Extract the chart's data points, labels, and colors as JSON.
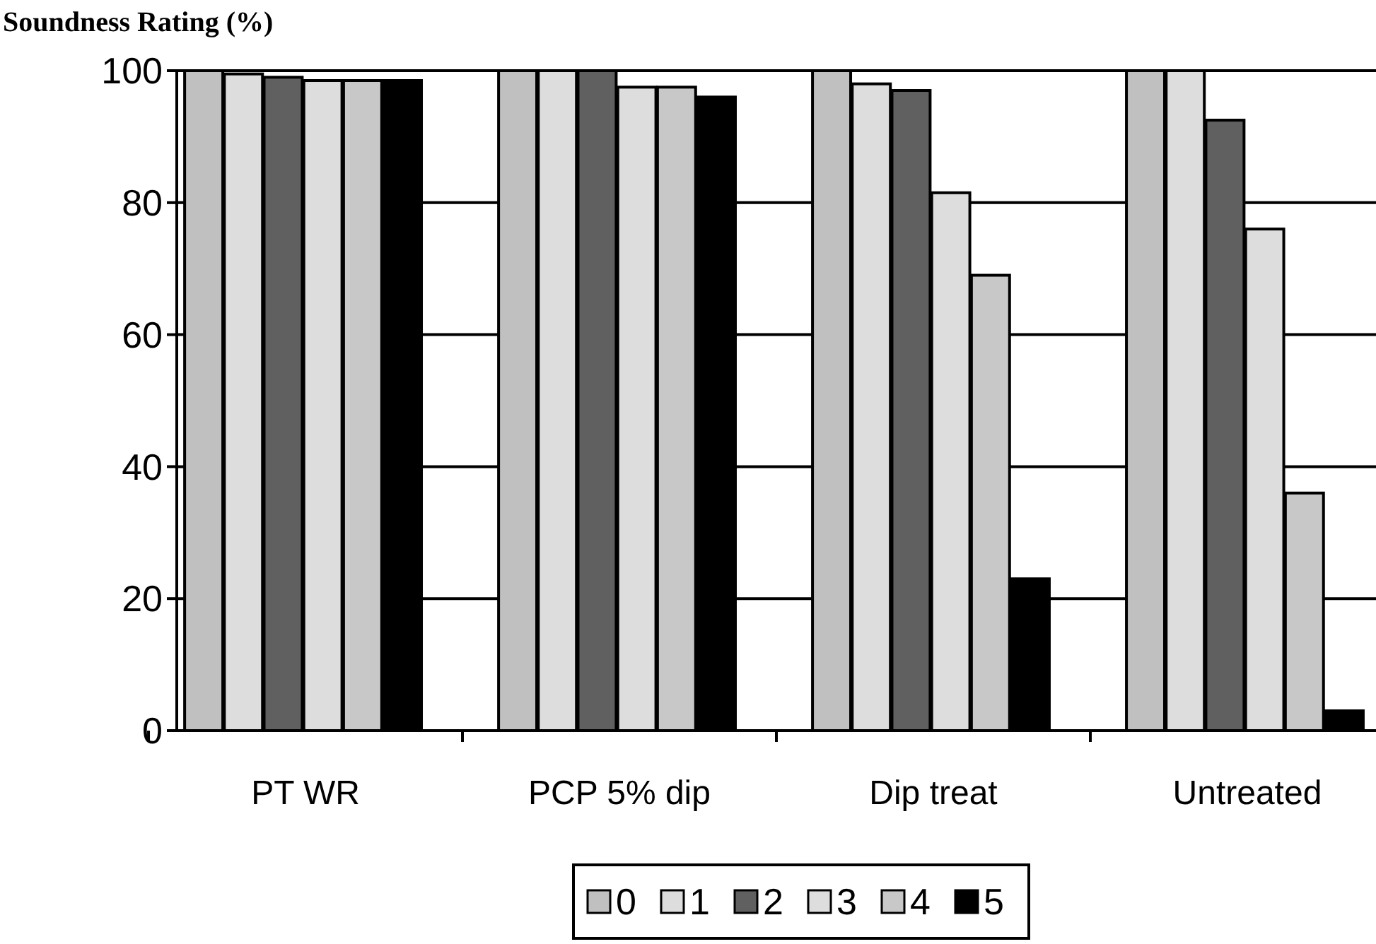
{
  "chart_data": {
    "type": "bar",
    "ylabel": "Soundness Rating (%)",
    "categories": [
      "PT WR",
      "PCP 5% dip",
      "Dip treat",
      "Untreated"
    ],
    "series": [
      {
        "name": "0",
        "color": "#c0c0c0",
        "values": [
          100,
          100,
          100,
          100
        ]
      },
      {
        "name": "1",
        "color": "#dddddd",
        "values": [
          99.5,
          100,
          98,
          100
        ]
      },
      {
        "name": "2",
        "color": "#606060",
        "values": [
          99,
          100,
          97,
          92.5
        ]
      },
      {
        "name": "3",
        "color": "#dddddd",
        "values": [
          98.5,
          97.5,
          81.5,
          76
        ]
      },
      {
        "name": "4",
        "color": "#c8c8c8",
        "values": [
          98.5,
          97.5,
          69,
          36
        ]
      },
      {
        "name": "5",
        "color": "#000000",
        "values": [
          98.5,
          96,
          23,
          3
        ]
      }
    ],
    "ylim": [
      0,
      100
    ],
    "yticks": [
      0,
      20,
      40,
      60,
      80,
      100
    ],
    "grid": "y",
    "legend": "bottom"
  }
}
